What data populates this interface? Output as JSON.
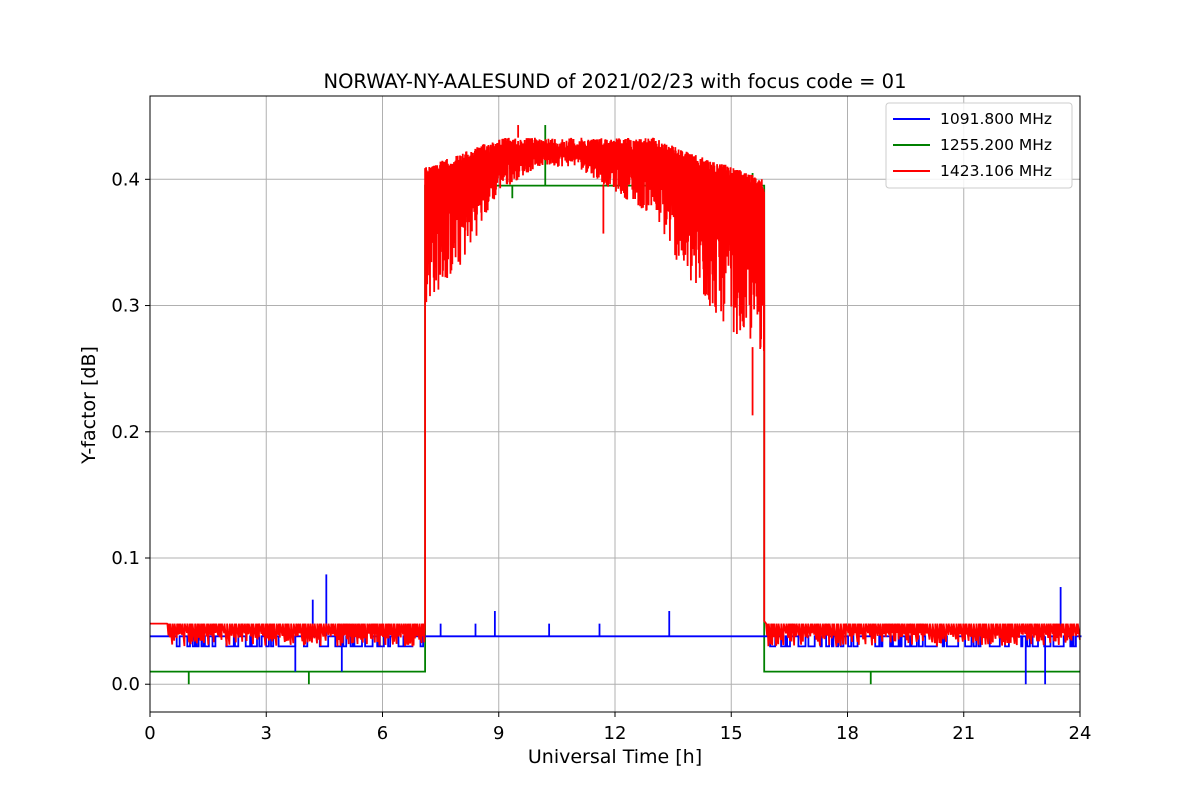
{
  "chart_data": {
    "type": "line",
    "title": "NORWAY-NY-AALESUND of 2021/02/23 with focus code = 01",
    "xlabel": "Universal Time [h]",
    "ylabel": "Y-factor [dB]",
    "xlim": [
      0,
      24
    ],
    "ylim": [
      -0.022,
      0.466
    ],
    "xticks": [
      0,
      3,
      6,
      9,
      12,
      15,
      18,
      21,
      24
    ],
    "yticks": [
      0.0,
      0.1,
      0.2,
      0.3,
      0.4
    ],
    "ytick_labels": [
      "0.0",
      "0.1",
      "0.2",
      "0.3",
      "0.4"
    ],
    "grid": true,
    "legend_position": "top-right",
    "series": [
      {
        "name": "1091.800 MHz",
        "color": "#0000ff",
        "baseline_segments": [
          {
            "x_start": 0,
            "x_end": 7.1,
            "y": 0.038
          },
          {
            "x_start": 7.1,
            "x_end": 15.85,
            "y": 0.038
          },
          {
            "x_start": 15.85,
            "x_end": 24,
            "y": 0.038
          }
        ],
        "noise_band": {
          "low": 0.03,
          "high": 0.038
        },
        "spikes": [
          {
            "x": 4.2,
            "y": 0.067
          },
          {
            "x": 4.55,
            "y": 0.087
          },
          {
            "x": 7.5,
            "y": 0.048
          },
          {
            "x": 8.4,
            "y": 0.048
          },
          {
            "x": 8.9,
            "y": 0.058
          },
          {
            "x": 10.3,
            "y": 0.048
          },
          {
            "x": 11.6,
            "y": 0.048
          },
          {
            "x": 13.4,
            "y": 0.058
          },
          {
            "x": 23.5,
            "y": 0.077
          },
          {
            "x": 22.6,
            "y": 0.0
          },
          {
            "x": 23.1,
            "y": 0.0
          },
          {
            "x": 3.75,
            "y": 0.01
          },
          {
            "x": 4.95,
            "y": 0.01
          }
        ]
      },
      {
        "name": "1255.200 MHz",
        "color": "#008000",
        "points": [
          [
            0,
            0.01
          ],
          [
            7.1,
            0.01
          ],
          [
            7.1,
            0.395
          ],
          [
            15.85,
            0.395
          ],
          [
            15.85,
            0.01
          ],
          [
            24,
            0.01
          ]
        ],
        "spikes_down": [
          {
            "x": 1.0,
            "y": 0.0
          },
          {
            "x": 4.1,
            "y": 0.0
          },
          {
            "x": 18.6,
            "y": 0.0
          },
          {
            "x": 9.35,
            "y": 0.385
          }
        ],
        "spikes_up": [
          {
            "x": 10.2,
            "y": 0.443
          },
          {
            "x": 15.55,
            "y": 0.405
          }
        ]
      },
      {
        "name": "1423.106 MHz",
        "color": "#ff0000",
        "baseline_low": 0.048,
        "noise_band_low_period": {
          "low": 0.03,
          "high": 0.048
        },
        "day_envelope": [
          [
            7.1,
            0.3,
            0.41
          ],
          [
            8.0,
            0.33,
            0.42
          ],
          [
            9.0,
            0.39,
            0.433
          ],
          [
            10.0,
            0.41,
            0.433
          ],
          [
            11.0,
            0.41,
            0.433
          ],
          [
            12.0,
            0.39,
            0.433
          ],
          [
            13.0,
            0.37,
            0.433
          ],
          [
            14.0,
            0.31,
            0.42
          ],
          [
            15.0,
            0.28,
            0.41
          ],
          [
            15.85,
            0.26,
            0.4
          ]
        ],
        "extreme_points": [
          {
            "x": 9.5,
            "y": 0.443
          },
          {
            "x": 15.55,
            "y": 0.213
          },
          {
            "x": 11.7,
            "y": 0.357
          }
        ]
      }
    ]
  }
}
